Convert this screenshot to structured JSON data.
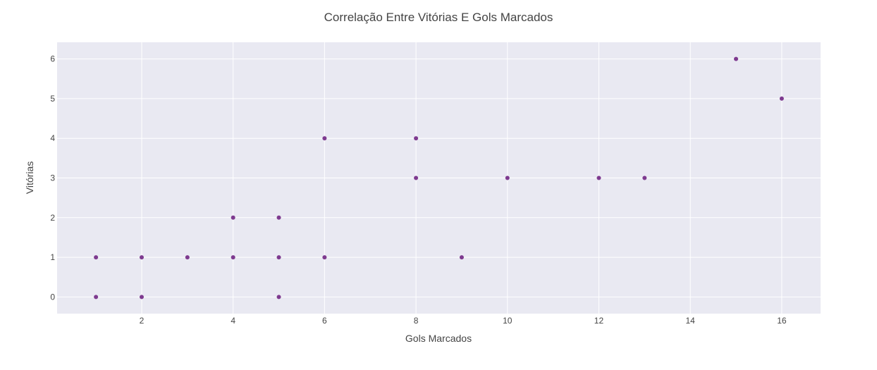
{
  "chart_data": {
    "type": "scatter",
    "title": "Correlação Entre Vitórias E Gols Marcados",
    "xlabel": "Gols Marcados",
    "ylabel": "Vitórias",
    "xlim": [
      0.15,
      16.85
    ],
    "ylim": [
      -0.42,
      6.42
    ],
    "xticks": [
      2,
      4,
      6,
      8,
      10,
      12,
      14,
      16
    ],
    "yticks": [
      0,
      1,
      2,
      3,
      4,
      5,
      6
    ],
    "grid": true,
    "marker_color": "#7e3a8f",
    "plot_background": "#e9e9f2",
    "points": [
      {
        "x": 1,
        "y": 0
      },
      {
        "x": 1,
        "y": 1
      },
      {
        "x": 2,
        "y": 0
      },
      {
        "x": 2,
        "y": 1
      },
      {
        "x": 3,
        "y": 1
      },
      {
        "x": 4,
        "y": 1
      },
      {
        "x": 4,
        "y": 2
      },
      {
        "x": 5,
        "y": 0
      },
      {
        "x": 5,
        "y": 1
      },
      {
        "x": 5,
        "y": 2
      },
      {
        "x": 6,
        "y": 1
      },
      {
        "x": 6,
        "y": 4
      },
      {
        "x": 8,
        "y": 3
      },
      {
        "x": 8,
        "y": 4
      },
      {
        "x": 9,
        "y": 1
      },
      {
        "x": 10,
        "y": 3
      },
      {
        "x": 12,
        "y": 3
      },
      {
        "x": 13,
        "y": 3
      },
      {
        "x": 15,
        "y": 6
      },
      {
        "x": 16,
        "y": 5
      }
    ]
  }
}
